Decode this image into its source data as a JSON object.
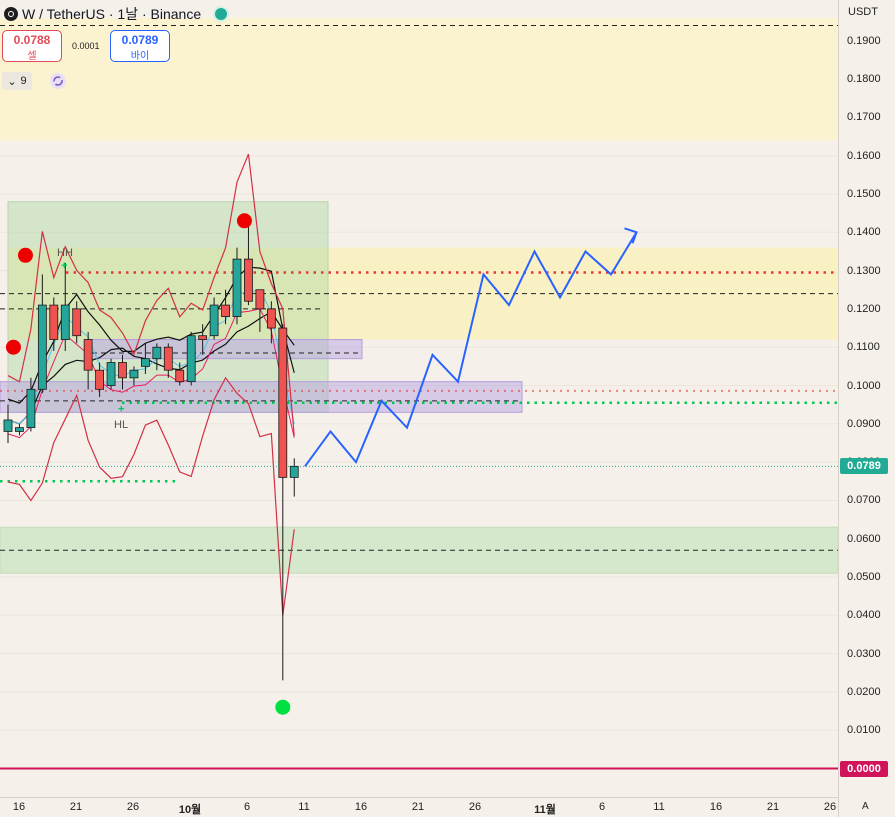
{
  "header": {
    "symbol": "W",
    "title": "W / TetherUS · 1날 · Binance"
  },
  "trade": {
    "sell_price": "0.0788",
    "sell_label": "셀",
    "spread": "0.0001",
    "buy_price": "0.0789",
    "buy_label": "바이"
  },
  "indicators": {
    "count": "9"
  },
  "price_axis": {
    "currency": "USDT",
    "ticks": [
      "0.1900",
      "0.1800",
      "0.1700",
      "0.1600",
      "0.1500",
      "0.1400",
      "0.1300",
      "0.1200",
      "0.1100",
      "0.1000",
      "0.0900",
      "0.0800",
      "0.0700",
      "0.0600",
      "0.0500",
      "0.0400",
      "0.0300",
      "0.0200",
      "0.0100"
    ],
    "current_price": "0.0789",
    "zero_label": "0.0000"
  },
  "time_axis": {
    "ticks": [
      "16",
      "21",
      "26",
      "10월",
      "6",
      "11",
      "16",
      "21",
      "26",
      "11월",
      "6",
      "11",
      "16",
      "21",
      "26"
    ],
    "settings_label": "A"
  },
  "annotations": {
    "hh": "HH",
    "hl": "HL"
  },
  "colors": {
    "bull": "#26a69a",
    "bear": "#ef5350",
    "current_price_tag": "#22ab94",
    "zero_tag": "#d1145a",
    "projection": "#2962ff",
    "resistance_dotted": "#e53935",
    "support_dotted": "#00c853"
  },
  "chart_data": {
    "type": "candlestick",
    "symbol": "W / TetherUS",
    "interval": "1날",
    "exchange": "Binance",
    "ylim": [
      0,
      0.195
    ],
    "candles": [
      {
        "o": 0.088,
        "h": 0.095,
        "l": 0.085,
        "c": 0.091
      },
      {
        "o": 0.088,
        "h": 0.09,
        "l": 0.087,
        "c": 0.089
      },
      {
        "o": 0.089,
        "h": 0.102,
        "l": 0.088,
        "c": 0.099
      },
      {
        "o": 0.099,
        "h": 0.129,
        "l": 0.098,
        "c": 0.121
      },
      {
        "o": 0.121,
        "h": 0.123,
        "l": 0.109,
        "c": 0.112
      },
      {
        "o": 0.112,
        "h": 0.132,
        "l": 0.109,
        "c": 0.121
      },
      {
        "o": 0.12,
        "h": 0.122,
        "l": 0.111,
        "c": 0.113
      },
      {
        "o": 0.112,
        "h": 0.114,
        "l": 0.099,
        "c": 0.104
      },
      {
        "o": 0.104,
        "h": 0.106,
        "l": 0.097,
        "c": 0.099
      },
      {
        "o": 0.1,
        "h": 0.107,
        "l": 0.099,
        "c": 0.106
      },
      {
        "o": 0.106,
        "h": 0.108,
        "l": 0.099,
        "c": 0.102
      },
      {
        "o": 0.102,
        "h": 0.105,
        "l": 0.1,
        "c": 0.104
      },
      {
        "o": 0.105,
        "h": 0.111,
        "l": 0.103,
        "c": 0.107
      },
      {
        "o": 0.107,
        "h": 0.111,
        "l": 0.104,
        "c": 0.11
      },
      {
        "o": 0.11,
        "h": 0.111,
        "l": 0.102,
        "c": 0.104
      },
      {
        "o": 0.104,
        "h": 0.106,
        "l": 0.1,
        "c": 0.101
      },
      {
        "o": 0.101,
        "h": 0.114,
        "l": 0.1,
        "c": 0.113
      },
      {
        "o": 0.113,
        "h": 0.116,
        "l": 0.108,
        "c": 0.112
      },
      {
        "o": 0.113,
        "h": 0.123,
        "l": 0.112,
        "c": 0.121
      },
      {
        "o": 0.121,
        "h": 0.125,
        "l": 0.116,
        "c": 0.118
      },
      {
        "o": 0.118,
        "h": 0.136,
        "l": 0.116,
        "c": 0.133
      },
      {
        "o": 0.133,
        "h": 0.143,
        "l": 0.121,
        "c": 0.122
      },
      {
        "o": 0.125,
        "h": 0.125,
        "l": 0.114,
        "c": 0.12
      },
      {
        "o": 0.12,
        "h": 0.122,
        "l": 0.111,
        "c": 0.115
      },
      {
        "o": 0.115,
        "h": 0.116,
        "l": 0.023,
        "c": 0.076
      },
      {
        "o": 0.076,
        "h": 0.081,
        "l": 0.071,
        "c": 0.0789
      }
    ],
    "projection_path": [
      0.0789,
      0.088,
      0.08,
      0.096,
      0.089,
      0.108,
      0.101,
      0.129,
      0.121,
      0.135,
      0.123,
      0.135,
      0.129,
      0.14
    ],
    "levels": {
      "resistance_dotted": 0.1295,
      "dashed_upper": 0.124,
      "dashed_mid": 0.12,
      "dashed_low": 0.096,
      "support_dotted": 0.0955,
      "support_dotted_left": 0.075,
      "dashed_bottom": 0.057,
      "dashed_top": 0.194
    },
    "zones": [
      {
        "type": "supply",
        "from": 0.164,
        "to": 0.196
      },
      {
        "type": "accumulation",
        "from": 0.112,
        "to": 0.136
      },
      {
        "type": "demand",
        "from": 0.051,
        "to": 0.063
      },
      {
        "type": "range-box",
        "from": 0.093,
        "to": 0.148
      },
      {
        "type": "order-block",
        "from": 0.107,
        "to": 0.112
      },
      {
        "type": "order-block",
        "from": 0.093,
        "to": 0.101
      }
    ],
    "markers": [
      {
        "type": "sell-dot",
        "candle": 1,
        "price": 0.134
      },
      {
        "type": "sell-dot",
        "candle": 1,
        "price": 0.11
      },
      {
        "type": "sell-dot",
        "candle": 21,
        "price": 0.143
      },
      {
        "type": "buy-dot",
        "candle": 24,
        "price": 0.016
      }
    ]
  }
}
